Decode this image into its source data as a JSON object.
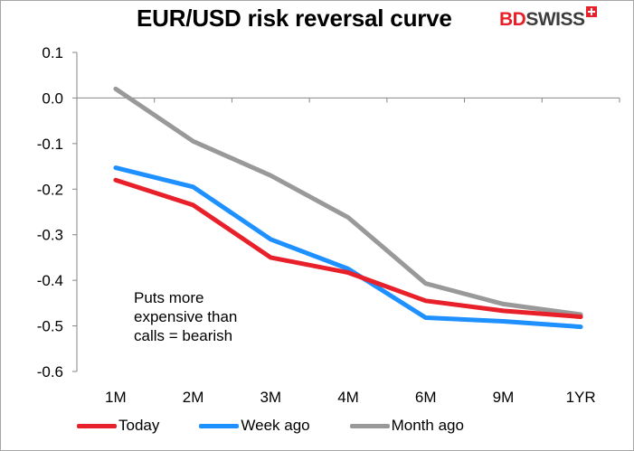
{
  "header": {
    "title": "EUR/USD risk reversal curve",
    "logo_text_red": "BD",
    "logo_text_dark": "SWISS"
  },
  "annotation": "Puts more\nexpensive than\ncalls = bearish",
  "chart_data": {
    "type": "line",
    "title": "EUR/USD risk reversal curve",
    "xlabel": "",
    "ylabel": "",
    "categories": [
      "1M",
      "2M",
      "3M",
      "4M",
      "6M",
      "9M",
      "1YR"
    ],
    "ylim": [
      -0.6,
      0.1
    ],
    "yticks": [
      "0.1",
      "0.0",
      "-0.1",
      "-0.2",
      "-0.3",
      "-0.4",
      "-0.5",
      "-0.6"
    ],
    "grid": false,
    "legend_position": "bottom",
    "series": [
      {
        "name": "Today",
        "color": "#e8202a",
        "values": [
          -0.18,
          -0.235,
          -0.35,
          -0.383,
          -0.445,
          -0.467,
          -0.48
        ]
      },
      {
        "name": "Week ago",
        "color": "#1e90ff",
        "values": [
          -0.153,
          -0.195,
          -0.31,
          -0.375,
          -0.482,
          -0.49,
          -0.502
        ]
      },
      {
        "name": "Month ago",
        "color": "#999999",
        "values": [
          0.02,
          -0.095,
          -0.17,
          -0.262,
          -0.407,
          -0.452,
          -0.475
        ]
      }
    ]
  }
}
